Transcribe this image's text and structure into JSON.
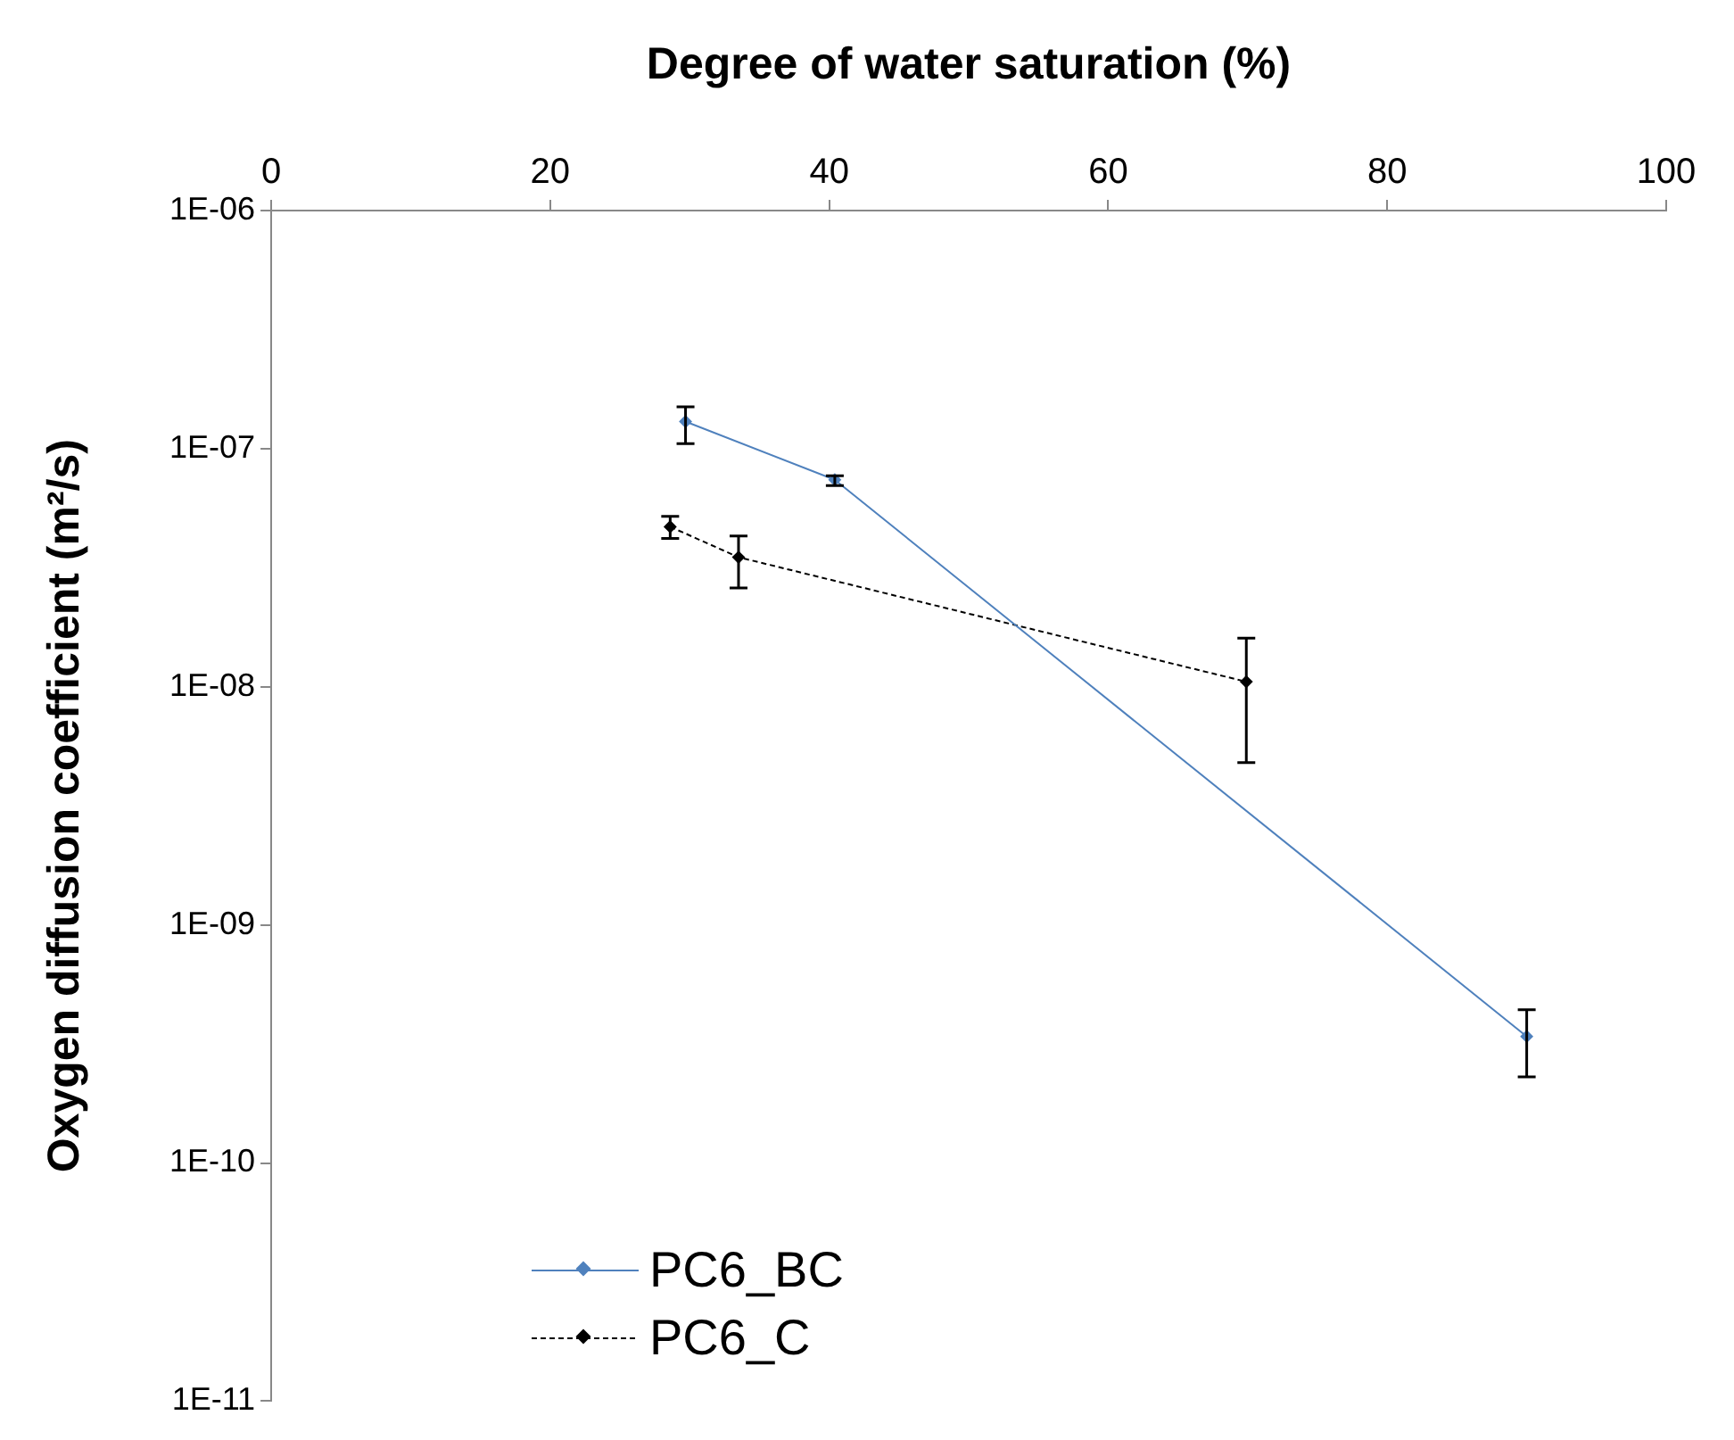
{
  "chart_data": {
    "type": "line",
    "xlabel": "Degree of water saturation (%)",
    "ylabel": "Oxygen diffusion coefficient (m²/s)",
    "xlim": [
      0,
      100
    ],
    "xticks": [
      0,
      20,
      40,
      60,
      80,
      100
    ],
    "ylim": [
      1e-11,
      1e-06
    ],
    "yticks": [
      {
        "value": 1e-11,
        "label": "1E-11"
      },
      {
        "value": 1e-10,
        "label": "1E-10"
      },
      {
        "value": 1e-09,
        "label": "1E-09"
      },
      {
        "value": 1e-08,
        "label": "1E-08"
      },
      {
        "value": 1e-07,
        "label": "1E-07"
      },
      {
        "value": 1e-06,
        "label": "1E-06"
      }
    ],
    "log": "y",
    "grid": false,
    "legend": "bottom left",
    "marker": "diamond",
    "series": [
      {
        "name": "PC6_BC",
        "color": "#4f81bd",
        "line_style": "solid",
        "x": [
          29.7,
          40.4,
          90
        ],
        "values": [
          1.3e-07,
          7.4e-08,
          3.4e-10
        ],
        "errors": [
          [
            1.05e-07,
            1.5e-07
          ],
          [
            7e-08,
            7.7e-08
          ],
          [
            2.3e-10,
            4.4e-10
          ]
        ]
      },
      {
        "name": "PC6_C",
        "color": "#000000",
        "line_style": "dashed",
        "x": [
          28.6,
          33.5,
          69.9
        ],
        "values": [
          4.7e-08,
          3.5e-08,
          1.05e-08
        ],
        "errors": [
          [
            4.2e-08,
            5.2e-08
          ],
          [
            2.6e-08,
            4.3e-08
          ],
          [
            4.8e-09,
            1.6e-08
          ]
        ]
      }
    ]
  }
}
